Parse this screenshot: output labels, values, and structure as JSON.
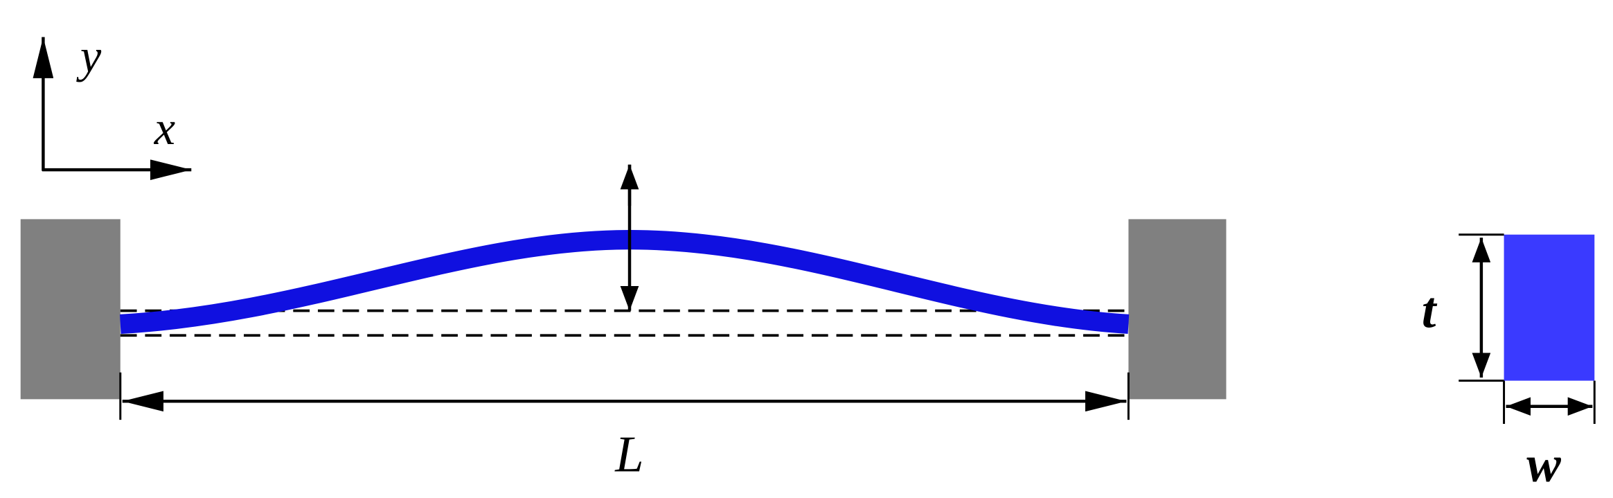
{
  "labels": {
    "y_axis": "y",
    "x_axis": "x",
    "length": "L",
    "thickness": "t",
    "width": "w"
  }
}
